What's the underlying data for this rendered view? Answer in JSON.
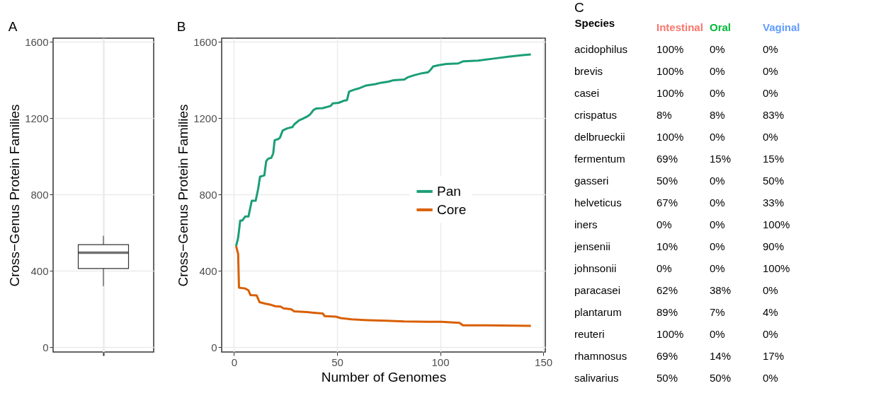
{
  "chart_data": [
    {
      "type": "box",
      "title": "A",
      "ylabel": "Cross−Genus Protein Families",
      "categories": [
        null
      ],
      "boxes": [
        {
          "low": 320,
          "q1": 413,
          "median": 496,
          "q3": 538,
          "high": 584
        }
      ],
      "ylim": [
        -25,
        1620
      ],
      "yticks": [
        0,
        400,
        800,
        1200,
        1600
      ],
      "grid": true
    },
    {
      "type": "line",
      "title": "B",
      "xlabel": "Number of Genomes",
      "ylabel": "Cross−Genus Protein Families",
      "xlim": [
        -6,
        151
      ],
      "xticks": [
        0,
        50,
        100,
        150
      ],
      "ylim": [
        -25,
        1620
      ],
      "yticks": [
        0,
        400,
        800,
        1200,
        1600
      ],
      "grid": true,
      "legend": "right",
      "series": [
        {
          "name": "Pan",
          "color": "#1b9e77",
          "x": [
            1,
            2,
            3,
            4,
            5.4,
            7,
            8.6,
            10.5,
            11.7,
            12.6,
            14.7,
            15.6,
            16.5,
            18.1,
            19,
            19.7,
            21.6,
            22.3,
            23.6,
            25.8,
            28.3,
            29.2,
            31.5,
            33.4,
            35.4,
            36.9,
            38.6,
            39.8,
            43,
            46.9,
            47.9,
            50.7,
            53.2,
            54.8,
            55.8,
            58.3,
            60.9,
            64.1,
            68.6,
            71.1,
            74.9,
            77.5,
            82.6,
            84.5,
            87.7,
            91.5,
            94.1,
            95.4,
            96.6,
            99.2,
            103,
            108.8,
            111.3,
            118.3,
            126,
            133.7,
            140,
            144
          ],
          "values": [
            530,
            574,
            664,
            664,
            685,
            685,
            768,
            768,
            830,
            894,
            901,
            975,
            988,
            993,
            1016,
            1085,
            1092,
            1099,
            1136,
            1147,
            1154,
            1168,
            1189,
            1198,
            1209,
            1220,
            1244,
            1251,
            1253,
            1265,
            1278,
            1281,
            1292,
            1295,
            1340,
            1350,
            1358,
            1372,
            1379,
            1386,
            1392,
            1400,
            1403,
            1416,
            1427,
            1437,
            1441,
            1455,
            1472,
            1478,
            1485,
            1488,
            1499,
            1502,
            1513,
            1524,
            1531,
            1535
          ]
        },
        {
          "name": "Core",
          "color": "#d95f02",
          "x": [
            1,
            2,
            2.4,
            5.4,
            7,
            8,
            11,
            12.4,
            15,
            18,
            20,
            22.6,
            24,
            27.7,
            29.2,
            35.4,
            38.6,
            43,
            44,
            49.4,
            51.7,
            57,
            65,
            73.7,
            82.6,
            94,
            100.5,
            109.4,
            111,
            122,
            144
          ],
          "values": [
            530,
            489,
            312,
            308,
            298,
            273,
            271,
            236,
            229,
            222,
            215,
            213,
            204,
            199,
            188,
            184,
            181,
            177,
            163,
            160,
            153,
            146,
            142,
            139,
            135,
            133,
            133,
            128,
            115,
            115,
            112
          ]
        }
      ]
    },
    {
      "type": "heatmap",
      "title": "C",
      "ylabel": "Species",
      "categories": [
        "Intestinal",
        "Oral",
        "Vaginal"
      ],
      "colors": [
        "#f8766d",
        "#00ba38",
        "#619cff"
      ],
      "y_categories": [
        "acidophilus",
        "brevis",
        "casei",
        "crispatus",
        "delbrueckii",
        "fermentum",
        "gasseri",
        "helveticus",
        "iners",
        "jensenii",
        "johnsonii",
        "paracasei",
        "plantarum",
        "reuteri",
        "rhamnosus",
        "salivarius"
      ],
      "cells": [
        [
          100,
          0,
          0
        ],
        [
          100,
          0,
          0
        ],
        [
          100,
          0,
          0
        ],
        [
          8,
          8,
          83
        ],
        [
          100,
          0,
          0
        ],
        [
          69,
          15,
          15
        ],
        [
          50,
          0,
          50
        ],
        [
          67,
          0,
          33
        ],
        [
          0,
          0,
          100
        ],
        [
          10,
          0,
          90
        ],
        [
          0,
          0,
          100
        ],
        [
          62,
          38,
          0
        ],
        [
          89,
          7,
          4
        ],
        [
          100,
          0,
          0
        ],
        [
          69,
          14,
          17
        ],
        [
          50,
          50,
          0
        ]
      ],
      "cell_labels": [
        [
          "100%",
          "0%",
          "0%"
        ],
        [
          "100%",
          "0%",
          "0%"
        ],
        [
          "100%",
          "0%",
          "0%"
        ],
        [
          "8%",
          "8%",
          "83%"
        ],
        [
          "100%",
          "0%",
          "0%"
        ],
        [
          "69%",
          "15%",
          "15%"
        ],
        [
          "50%",
          "0%",
          "50%"
        ],
        [
          "67%",
          "0%",
          "33%"
        ],
        [
          "0%",
          "0%",
          "100%"
        ],
        [
          "10%",
          "0%",
          "90%"
        ],
        [
          "0%",
          "0%",
          "100%"
        ],
        [
          "62%",
          "38%",
          "0%"
        ],
        [
          "89%",
          "7%",
          "4%"
        ],
        [
          "100%",
          "0%",
          "0%"
        ],
        [
          "69%",
          "14%",
          "17%"
        ],
        [
          "50%",
          "50%",
          "0%"
        ]
      ]
    }
  ]
}
